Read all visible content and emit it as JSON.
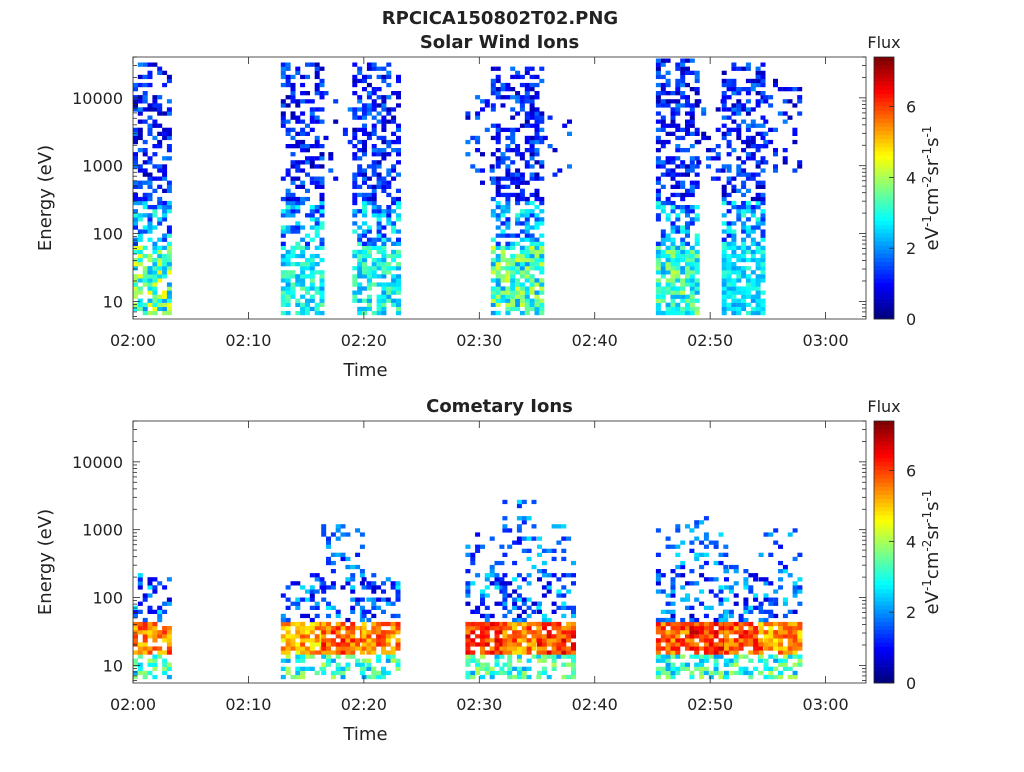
{
  "figure": {
    "title": "RPCICA150802T02.PNG"
  },
  "colorbar": {
    "colormap": "jet",
    "range": [
      0,
      7.4
    ],
    "ticks": [
      "0",
      "2",
      "4",
      "6"
    ],
    "tick_values": [
      0,
      2,
      4,
      6
    ],
    "title": "Flux",
    "unit_base": [
      "eV",
      "cm",
      "sr",
      "s"
    ],
    "unit_exp": [
      "-1",
      "-2",
      "-1",
      "-1"
    ]
  },
  "chart_data": [
    {
      "type": "heatmap",
      "title": "Solar Wind Ions",
      "xlabel": "Time",
      "ylabel": "Energy (eV)",
      "x_ticks": [
        "02:00",
        "02:10",
        "02:20",
        "02:30",
        "02:40",
        "02:50",
        "03:00"
      ],
      "x_tick_minutes": [
        0,
        10,
        20,
        30,
        40,
        50,
        60
      ],
      "xlim_minutes": [
        0,
        63.5
      ],
      "y_scale": "log",
      "ylim": [
        5.5,
        40000
      ],
      "y_ticks": [
        "10",
        "100",
        "1000",
        "10000"
      ],
      "y_tick_values": [
        10,
        100,
        1000,
        10000
      ],
      "bursts": [
        {
          "t_start": 0.0,
          "t_end": 3.2,
          "e_min": 6,
          "e_max": 30000,
          "density": 0.55,
          "core_flux": 4.8
        },
        {
          "t_start": 12.8,
          "t_end": 16.5,
          "e_min": 6,
          "e_max": 32000,
          "density": 0.55,
          "core_flux": 3.6
        },
        {
          "t_start": 16.5,
          "t_end": 19.0,
          "e_min": 600,
          "e_max": 15000,
          "density": 0.18,
          "core_flux": 2.0
        },
        {
          "t_start": 19.0,
          "t_end": 22.8,
          "e_min": 6,
          "e_max": 30000,
          "density": 0.55,
          "core_flux": 3.6
        },
        {
          "t_start": 28.8,
          "t_end": 31.0,
          "e_min": 500,
          "e_max": 10000,
          "density": 0.2,
          "core_flux": 2.2
        },
        {
          "t_start": 31.0,
          "t_end": 35.5,
          "e_min": 6,
          "e_max": 28000,
          "density": 0.6,
          "core_flux": 4.4
        },
        {
          "t_start": 35.5,
          "t_end": 38.0,
          "e_min": 500,
          "e_max": 5000,
          "density": 0.2,
          "core_flux": 2.2
        },
        {
          "t_start": 45.3,
          "t_end": 48.8,
          "e_min": 6,
          "e_max": 35000,
          "density": 0.6,
          "core_flux": 4.2
        },
        {
          "t_start": 48.8,
          "t_end": 51.0,
          "e_min": 600,
          "e_max": 12000,
          "density": 0.2,
          "core_flux": 2.1
        },
        {
          "t_start": 51.0,
          "t_end": 54.6,
          "e_min": 6,
          "e_max": 30000,
          "density": 0.6,
          "core_flux": 3.2
        },
        {
          "t_start": 54.6,
          "t_end": 57.6,
          "e_min": 800,
          "e_max": 20000,
          "density": 0.2,
          "core_flux": 2.2
        }
      ]
    },
    {
      "type": "heatmap",
      "title": "Cometary Ions",
      "xlabel": "Time",
      "ylabel": "Energy (eV)",
      "x_ticks": [
        "02:00",
        "02:10",
        "02:20",
        "02:30",
        "02:40",
        "02:50",
        "03:00"
      ],
      "x_tick_minutes": [
        0,
        10,
        20,
        30,
        40,
        50,
        60
      ],
      "xlim_minutes": [
        0,
        63.5
      ],
      "y_scale": "log",
      "ylim": [
        5.5,
        40000
      ],
      "y_ticks": [
        "10",
        "100",
        "1000",
        "10000"
      ],
      "y_tick_values": [
        10,
        100,
        1000,
        10000
      ],
      "bursts": [
        {
          "t_start": 0.0,
          "t_end": 3.2,
          "e_min": 6,
          "e_max": 220,
          "density": 0.45,
          "core_flux": 6.4
        },
        {
          "t_start": 12.8,
          "t_end": 16.3,
          "e_min": 6,
          "e_max": 200,
          "density": 0.45,
          "core_flux": 6.0
        },
        {
          "t_start": 16.3,
          "t_end": 19.8,
          "e_min": 6,
          "e_max": 1200,
          "density": 0.45,
          "core_flux": 6.6
        },
        {
          "t_start": 19.8,
          "t_end": 22.8,
          "e_min": 6,
          "e_max": 200,
          "density": 0.45,
          "core_flux": 6.4
        },
        {
          "t_start": 28.8,
          "t_end": 32.0,
          "e_min": 6,
          "e_max": 900,
          "density": 0.45,
          "core_flux": 6.8
        },
        {
          "t_start": 32.0,
          "t_end": 35.0,
          "e_min": 6,
          "e_max": 2600,
          "density": 0.45,
          "core_flux": 6.4
        },
        {
          "t_start": 35.0,
          "t_end": 38.2,
          "e_min": 6,
          "e_max": 1200,
          "density": 0.45,
          "core_flux": 6.8
        },
        {
          "t_start": 45.3,
          "t_end": 48.2,
          "e_min": 6,
          "e_max": 1100,
          "density": 0.45,
          "core_flux": 6.6
        },
        {
          "t_start": 48.2,
          "t_end": 51.2,
          "e_min": 6,
          "e_max": 1500,
          "density": 0.45,
          "core_flux": 7.0
        },
        {
          "t_start": 51.2,
          "t_end": 54.2,
          "e_min": 6,
          "e_max": 300,
          "density": 0.45,
          "core_flux": 6.6
        },
        {
          "t_start": 54.2,
          "t_end": 57.6,
          "e_min": 6,
          "e_max": 1100,
          "density": 0.45,
          "core_flux": 6.2
        }
      ]
    }
  ]
}
